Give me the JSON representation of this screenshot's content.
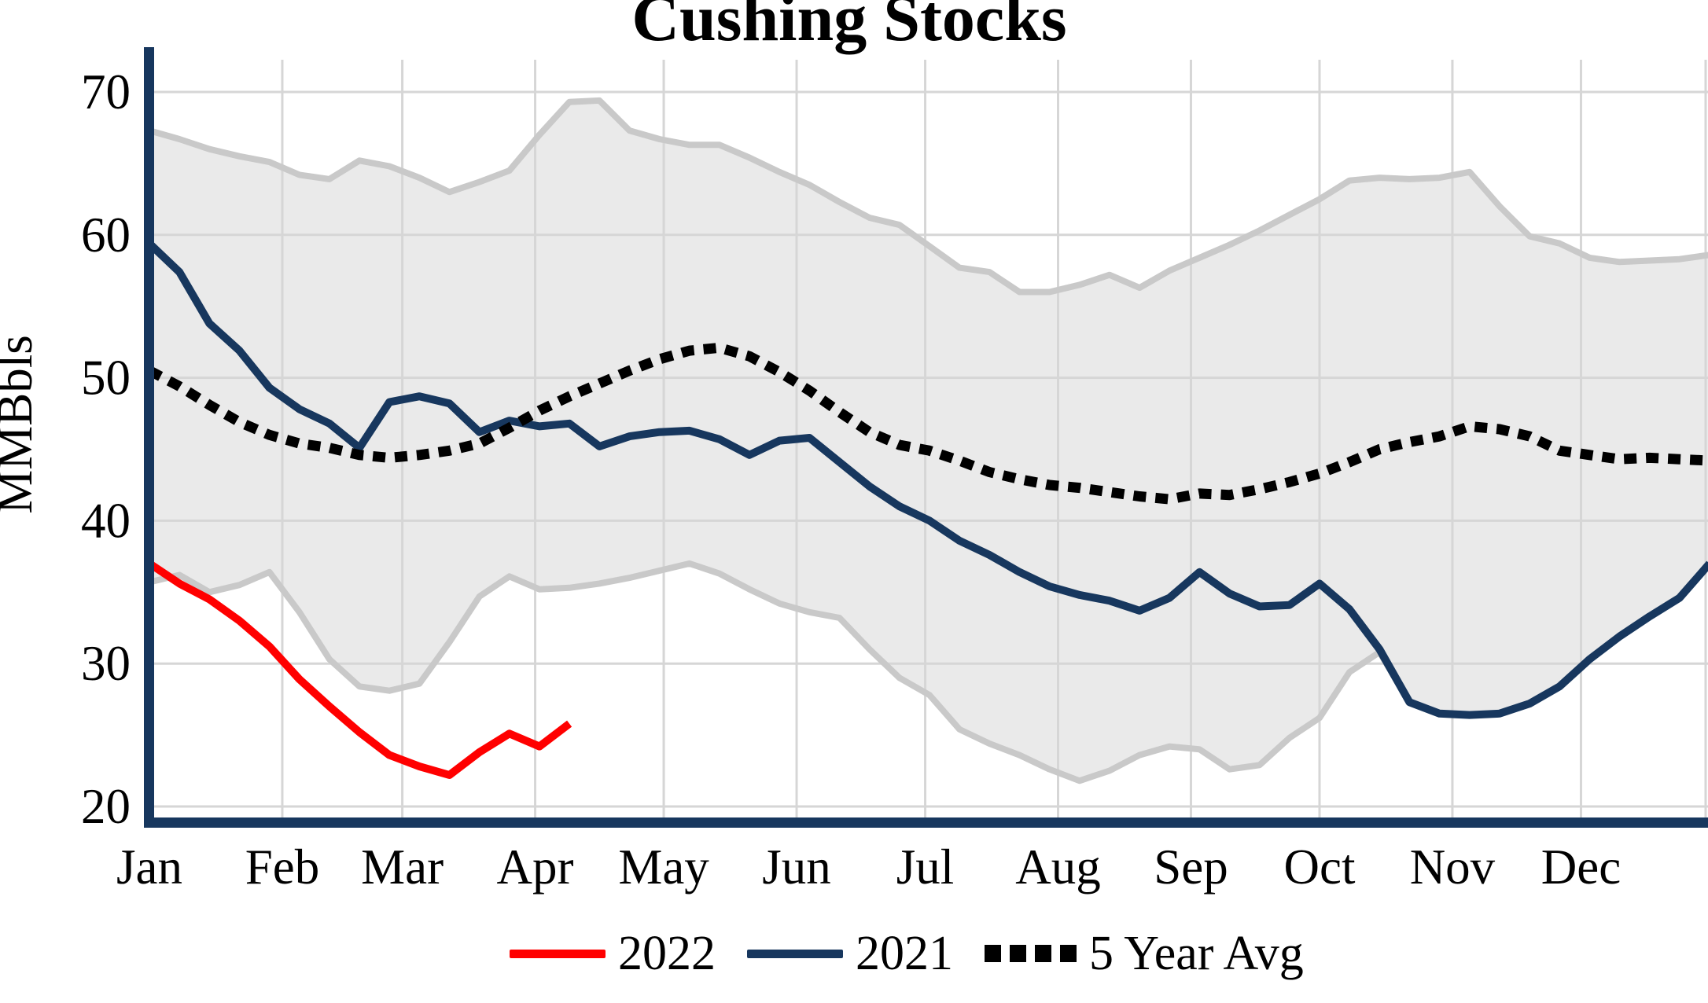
{
  "title": "Cushing Stocks",
  "y_axis": {
    "label": "MMBbls",
    "ticks": [
      70,
      60,
      50,
      40,
      30,
      20
    ]
  },
  "x_axis": {
    "months": [
      "Jan",
      "Feb",
      "Mar",
      "Apr",
      "May",
      "Jun",
      "Jul",
      "Aug",
      "Sep",
      "Oct",
      "Nov",
      "Dec"
    ]
  },
  "legend": {
    "items": [
      {
        "label": "2022",
        "color": "#ff0000",
        "style": "solid"
      },
      {
        "label": "2021",
        "color": "#17375e",
        "style": "solid"
      },
      {
        "label": "5 Year Avg",
        "color": "#000000",
        "style": "dotted"
      }
    ]
  },
  "colors": {
    "series_2022": "#ff0000",
    "series_2021": "#17375e",
    "five_year_avg": "#000000",
    "band_fill": "#eaeaea",
    "band_edge": "#c9c9c9",
    "grid": "#d6d6d6",
    "axis": "#17375e",
    "text": "#000000"
  },
  "chart_data": {
    "type": "line",
    "title": "Cushing Stocks",
    "ylabel": "MMBbls",
    "xlabel": "",
    "ylim": [
      18.5,
      72
    ],
    "yticks": [
      70,
      60,
      50,
      40,
      30,
      20
    ],
    "x_unit": "day_of_year",
    "xlim": [
      0,
      364
    ],
    "grid": true,
    "legend_position": "bottom",
    "month_start_days": [
      0,
      31,
      59,
      90,
      120,
      151,
      181,
      212,
      243,
      273,
      304,
      334
    ],
    "week_days": [
      0,
      7,
      14,
      21,
      28,
      35,
      42,
      49,
      56,
      63,
      70,
      77,
      84,
      91,
      98,
      105,
      112,
      119,
      126,
      133,
      140,
      147,
      154,
      161,
      168,
      175,
      182,
      189,
      196,
      203,
      210,
      217,
      224,
      231,
      238,
      245,
      252,
      259,
      266,
      273,
      280,
      287,
      294,
      301,
      308,
      315,
      322,
      329,
      336,
      343,
      350,
      357,
      364
    ],
    "band": {
      "name": "5 Year Range",
      "upper": [
        67.3,
        66.7,
        66.0,
        65.5,
        65.1,
        64.2,
        63.9,
        65.2,
        64.8,
        64.0,
        63.0,
        63.7,
        64.5,
        67.0,
        69.3,
        69.4,
        67.3,
        66.7,
        66.3,
        66.3,
        65.4,
        64.4,
        63.5,
        62.3,
        61.2,
        60.7,
        59.2,
        57.7,
        57.4,
        56.0,
        56.0,
        56.5,
        57.2,
        56.3,
        57.5,
        58.4,
        59.3,
        60.3,
        61.4,
        62.5,
        63.8,
        64.0,
        63.9,
        64.0,
        64.4,
        62.0,
        59.9,
        59.4,
        58.4,
        58.1,
        58.2,
        58.3,
        58.6
      ],
      "lower": [
        35.7,
        36.2,
        35.0,
        35.5,
        36.4,
        33.6,
        30.3,
        28.4,
        28.1,
        28.6,
        31.5,
        34.7,
        36.1,
        35.2,
        35.3,
        35.6,
        36.0,
        36.5,
        37.0,
        36.3,
        35.2,
        34.2,
        33.6,
        33.2,
        31.0,
        29.0,
        27.8,
        25.4,
        24.4,
        23.6,
        22.6,
        21.8,
        22.5,
        23.6,
        24.2,
        24.0,
        22.6,
        22.9,
        24.8,
        26.2,
        29.4,
        30.8,
        27.3,
        26.5,
        26.4,
        26.5,
        27.2,
        28.4,
        30.3,
        31.9,
        33.3,
        34.6,
        37.0
      ]
    },
    "series": [
      {
        "name": "2021",
        "color": "#17375e",
        "style": "solid",
        "days": [
          0,
          7,
          14,
          21,
          28,
          35,
          42,
          49,
          56,
          63,
          70,
          77,
          84,
          91,
          98,
          105,
          112,
          119,
          126,
          133,
          140,
          147,
          154,
          161,
          168,
          175,
          182,
          189,
          196,
          203,
          210,
          217,
          224,
          231,
          238,
          245,
          252,
          259,
          266,
          273,
          280,
          287,
          294,
          301,
          308,
          315,
          322,
          329,
          336,
          343,
          350,
          357,
          364
        ],
        "values": [
          59.4,
          57.4,
          53.8,
          51.9,
          49.3,
          47.8,
          46.8,
          45.1,
          48.3,
          48.7,
          48.2,
          46.2,
          47.0,
          46.6,
          46.8,
          45.2,
          45.9,
          46.2,
          46.3,
          45.7,
          44.6,
          45.6,
          45.8,
          44.1,
          42.4,
          41.0,
          40.0,
          38.6,
          37.6,
          36.4,
          35.4,
          34.8,
          34.4,
          33.7,
          34.6,
          36.4,
          34.9,
          34.0,
          34.1,
          35.6,
          33.8,
          31.0,
          27.3,
          26.5,
          26.4,
          26.5,
          27.2,
          28.4,
          30.3,
          31.9,
          33.3,
          34.6,
          37.0
        ]
      },
      {
        "name": "5 Year Avg",
        "color": "#000000",
        "style": "dotted",
        "days": [
          0,
          7,
          14,
          21,
          28,
          35,
          42,
          49,
          56,
          63,
          70,
          77,
          84,
          91,
          98,
          105,
          112,
          119,
          126,
          133,
          140,
          147,
          154,
          161,
          168,
          175,
          182,
          189,
          196,
          203,
          210,
          217,
          224,
          231,
          238,
          245,
          252,
          259,
          266,
          273,
          280,
          287,
          294,
          301,
          308,
          315,
          322,
          329,
          336,
          343,
          350,
          357,
          364
        ],
        "values": [
          50.5,
          49.4,
          48.1,
          46.9,
          46.0,
          45.4,
          45.1,
          44.6,
          44.4,
          44.6,
          44.9,
          45.4,
          46.5,
          47.7,
          48.7,
          49.6,
          50.5,
          51.3,
          51.9,
          52.1,
          51.5,
          50.4,
          49.1,
          47.6,
          46.2,
          45.3,
          44.9,
          44.2,
          43.4,
          42.9,
          42.5,
          42.3,
          42.0,
          41.7,
          41.5,
          41.9,
          41.8,
          42.2,
          42.7,
          43.3,
          44.1,
          45.0,
          45.5,
          45.9,
          46.6,
          46.4,
          45.9,
          44.9,
          44.6,
          44.3,
          44.4,
          44.3,
          44.2
        ]
      },
      {
        "name": "2022",
        "color": "#ff0000",
        "style": "solid",
        "days": [
          0,
          7,
          14,
          21,
          28,
          35,
          42,
          49,
          56,
          63,
          70,
          77,
          84,
          91,
          98
        ],
        "values": [
          37.0,
          35.6,
          34.5,
          33.0,
          31.2,
          28.9,
          27.0,
          25.2,
          23.6,
          22.8,
          22.2,
          23.8,
          25.1,
          24.2,
          25.8
        ]
      }
    ]
  }
}
